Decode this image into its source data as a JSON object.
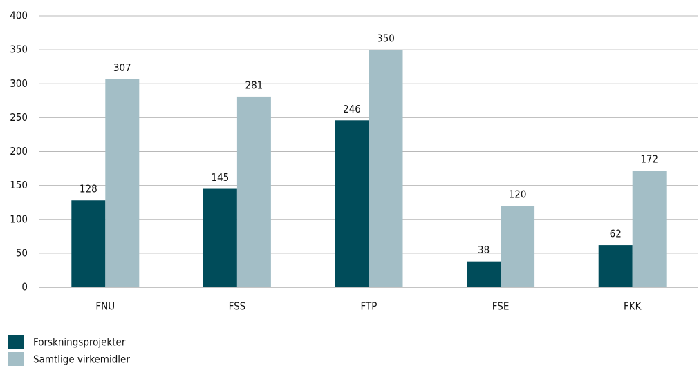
{
  "chart_data": {
    "type": "bar",
    "categories": [
      "FNU",
      "FSS",
      "FTP",
      "FSE",
      "FKK"
    ],
    "series": [
      {
        "name": "Forskningsprojekter",
        "color": "#004c5a",
        "values": [
          128,
          145,
          246,
          38,
          62
        ]
      },
      {
        "name": "Samtlige virkemidler",
        "color": "#a3bec6",
        "values": [
          307,
          281,
          350,
          120,
          172
        ]
      }
    ],
    "ylim": [
      0,
      400
    ],
    "yticks": [
      0,
      50,
      100,
      150,
      200,
      250,
      300,
      350,
      400
    ],
    "grid": true,
    "legend": "bottom-left"
  }
}
